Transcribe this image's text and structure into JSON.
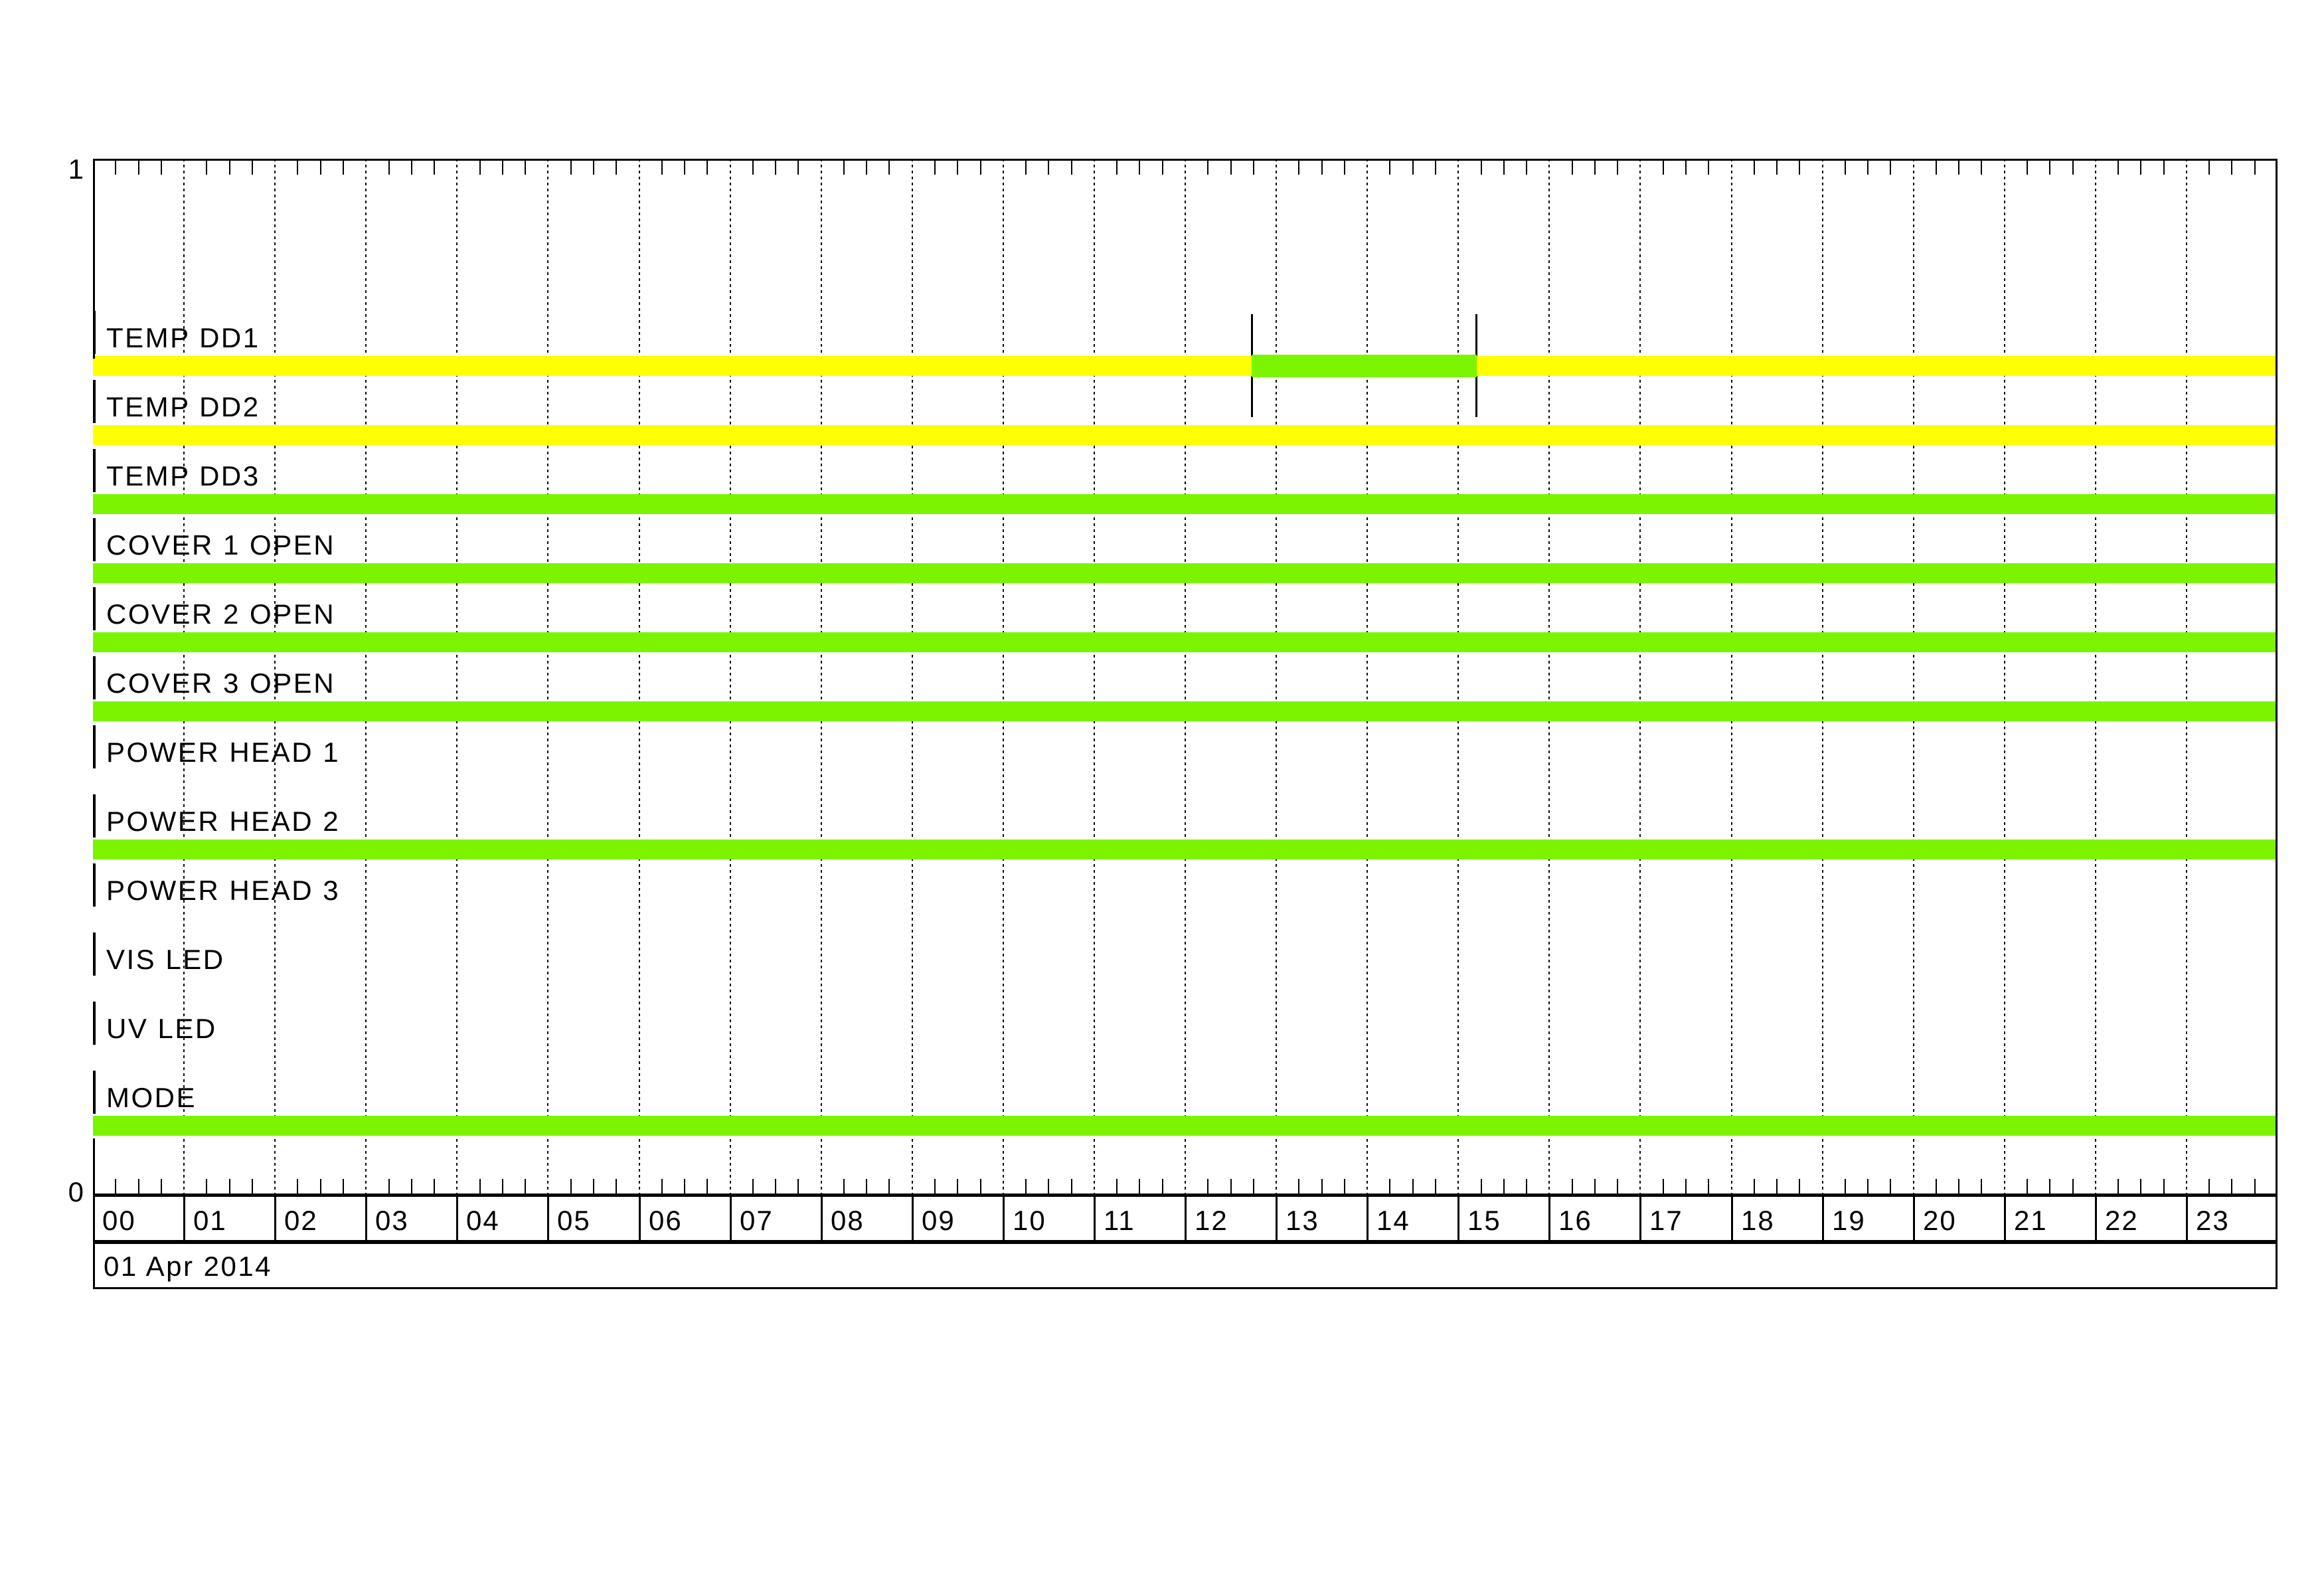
{
  "chart_data": {
    "type": "bar",
    "variant": "operations-timeline-gantt",
    "title": "",
    "date_label": "01 Apr 2014",
    "x_axis": {
      "unit": "hours",
      "min": 0,
      "max": 24,
      "hour_labels": [
        "00",
        "01",
        "02",
        "03",
        "04",
        "05",
        "06",
        "07",
        "08",
        "09",
        "10",
        "11",
        "12",
        "13",
        "14",
        "15",
        "16",
        "17",
        "18",
        "19",
        "20",
        "21",
        "22",
        "23"
      ],
      "minor_tick_minutes": 15,
      "gridline_every_hours": 1,
      "grid_style": "dashed"
    },
    "y_axis": {
      "top_label": "1",
      "bottom_label": "0"
    },
    "palette": {
      "green": "#7CF400",
      "yellow": "#FFFF00",
      "line": "#000000",
      "background": "#FFFFFF"
    },
    "rows": [
      {
        "label": "TEMP DD1",
        "segments": [
          {
            "start": 0,
            "end": 24,
            "color_key": "yellow"
          },
          {
            "start": 12.73,
            "end": 15.2,
            "color_key": "green",
            "overlay": true,
            "start_label": "12:44",
            "end_label": "15:12"
          }
        ],
        "markers": [
          0,
          12.73,
          15.2
        ]
      },
      {
        "label": "TEMP DD2",
        "segments": [
          {
            "start": 0,
            "end": 24,
            "color_key": "yellow"
          }
        ],
        "markers": [
          0
        ]
      },
      {
        "label": "TEMP DD3",
        "segments": [
          {
            "start": 0,
            "end": 24,
            "color_key": "green"
          }
        ],
        "markers": [
          0
        ]
      },
      {
        "label": "COVER 1 OPEN",
        "segments": [
          {
            "start": 0,
            "end": 24,
            "color_key": "green"
          }
        ],
        "markers": [
          0
        ]
      },
      {
        "label": "COVER 2 OPEN",
        "segments": [
          {
            "start": 0,
            "end": 24,
            "color_key": "green"
          }
        ],
        "markers": [
          0
        ]
      },
      {
        "label": "COVER 3 OPEN",
        "segments": [
          {
            "start": 0,
            "end": 24,
            "color_key": "green"
          }
        ],
        "markers": [
          0
        ]
      },
      {
        "label": "POWER HEAD 1",
        "segments": [],
        "markers": [
          0
        ]
      },
      {
        "label": "POWER HEAD 2",
        "segments": [
          {
            "start": 0,
            "end": 24,
            "color_key": "green"
          }
        ],
        "markers": [
          0
        ]
      },
      {
        "label": "POWER HEAD 3",
        "segments": [],
        "markers": [
          0
        ]
      },
      {
        "label": "VIS LED",
        "segments": [],
        "markers": [
          0
        ]
      },
      {
        "label": "UV LED",
        "segments": [],
        "markers": [
          0
        ]
      },
      {
        "label": "MODE",
        "segments": [
          {
            "start": 0,
            "end": 24,
            "color_key": "green"
          }
        ],
        "markers": [
          0
        ]
      }
    ]
  }
}
